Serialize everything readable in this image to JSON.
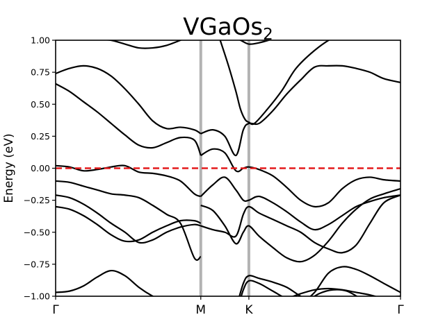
{
  "chart_data": {
    "type": "line",
    "title": "VGaOs",
    "title_subscript": "2",
    "xlabel": "",
    "ylabel": "Energy (eV)",
    "ylim": [
      -1.0,
      1.0
    ],
    "xlim": [
      0,
      3.73
    ],
    "yticks": [
      {
        "value": 1.0,
        "label": "1.00"
      },
      {
        "value": 0.75,
        "label": "0.75"
      },
      {
        "value": 0.5,
        "label": "0.50"
      },
      {
        "value": 0.25,
        "label": "0.25"
      },
      {
        "value": 0.0,
        "label": "0.00"
      },
      {
        "value": -0.25,
        "label": "−0.25"
      },
      {
        "value": -0.5,
        "label": "−0.50"
      },
      {
        "value": -0.75,
        "label": "−0.75"
      },
      {
        "value": -1.0,
        "label": "−1.00"
      }
    ],
    "xticks": [
      {
        "value": 0,
        "label": "Γ"
      },
      {
        "value": 1.57,
        "label": "M"
      },
      {
        "value": 2.09,
        "label": "K"
      },
      {
        "value": 3.73,
        "label": "Γ"
      }
    ],
    "vlines": [
      1.57,
      2.09
    ],
    "vline_color": "#b3b3b3",
    "fermi_level": 0.0,
    "fermi_color": "#e41a1c",
    "band_color": "#000000",
    "grid": false,
    "series": [
      {
        "x": [
          0.0,
          0.15,
          0.3,
          0.45,
          0.6,
          0.75,
          0.9,
          1.05,
          1.2,
          1.35,
          1.5,
          1.57
        ],
        "values": [
          -0.97,
          -0.96,
          -0.92,
          -0.85,
          -0.8,
          -0.84,
          -0.93,
          -1.0,
          -1.05,
          -1.08,
          -1.1,
          -1.1
        ]
      },
      {
        "x": [
          2.09,
          2.2,
          2.35,
          2.5,
          2.65,
          2.8,
          2.95,
          3.1,
          3.25,
          3.4,
          3.55,
          3.73
        ],
        "values": [
          -1.1,
          -1.09,
          -1.06,
          -1.02,
          -0.98,
          -0.95,
          -0.94,
          -0.95,
          -0.97,
          -0.99,
          -1.02,
          -1.05
        ]
      },
      {
        "x": [
          0.0,
          0.15,
          0.3,
          0.45,
          0.6,
          0.75,
          0.9,
          1.05,
          1.2,
          1.35,
          1.5,
          1.57
        ],
        "values": [
          -0.3,
          -0.32,
          -0.37,
          -0.44,
          -0.52,
          -0.57,
          -0.56,
          -0.5,
          -0.45,
          -0.41,
          -0.41,
          -0.43
        ]
      },
      {
        "x": [
          0.0,
          0.15,
          0.3,
          0.45,
          0.6,
          0.75,
          0.9,
          1.05,
          1.2,
          1.35,
          1.5,
          1.57
        ],
        "values": [
          -0.21,
          -0.23,
          -0.28,
          -0.35,
          -0.43,
          -0.5,
          -0.58,
          -0.56,
          -0.5,
          -0.46,
          -0.44,
          -0.45
        ]
      },
      {
        "x": [
          0.0,
          0.15,
          0.3,
          0.45,
          0.6,
          0.75,
          0.9,
          1.05,
          1.2,
          1.35,
          1.5,
          1.57
        ],
        "values": [
          -0.1,
          -0.11,
          -0.14,
          -0.17,
          -0.2,
          -0.21,
          -0.23,
          -0.29,
          -0.36,
          -0.43,
          -0.7,
          -0.69
        ]
      },
      {
        "x": [
          0.0,
          0.15,
          0.3,
          0.45,
          0.6,
          0.75,
          0.9,
          1.05,
          1.2,
          1.35,
          1.5,
          1.57
        ],
        "values": [
          0.02,
          0.01,
          -0.02,
          -0.01,
          0.01,
          0.02,
          -0.03,
          -0.04,
          -0.06,
          -0.1,
          -0.2,
          -0.22
        ]
      },
      {
        "x": [
          0.0,
          0.15,
          0.3,
          0.45,
          0.6,
          0.75,
          0.9,
          1.05,
          1.2,
          1.35,
          1.5,
          1.57
        ],
        "values": [
          0.66,
          0.6,
          0.52,
          0.44,
          0.35,
          0.26,
          0.18,
          0.16,
          0.2,
          0.24,
          0.22,
          0.1
        ]
      },
      {
        "x": [
          0.0,
          0.15,
          0.3,
          0.45,
          0.6,
          0.75,
          0.9,
          1.05,
          1.2,
          1.35,
          1.5,
          1.57
        ],
        "values": [
          0.74,
          0.78,
          0.8,
          0.78,
          0.72,
          0.62,
          0.5,
          0.37,
          0.31,
          0.32,
          0.3,
          0.27
        ]
      },
      {
        "x": [
          0.0,
          0.15,
          0.3,
          0.45,
          0.6,
          0.75,
          0.9,
          1.05,
          1.2,
          1.35,
          1.57
        ],
        "values": [
          1.1,
          1.08,
          1.05,
          1.01,
          1.0,
          0.97,
          0.94,
          0.94,
          0.96,
          1.0,
          1.06
        ]
      },
      {
        "x": [
          1.57,
          1.7,
          1.83,
          1.95,
          2.03,
          2.09,
          2.2,
          2.35,
          2.5,
          2.65,
          2.8,
          2.95,
          3.1,
          3.25,
          3.4,
          3.55,
          3.73
        ],
        "values": [
          -0.22,
          -0.13,
          -0.07,
          -0.17,
          -0.25,
          -0.25,
          -0.22,
          -0.27,
          -0.34,
          -0.42,
          -0.48,
          -0.44,
          -0.37,
          -0.3,
          -0.26,
          -0.23,
          -0.21
        ]
      },
      {
        "x": [
          1.57,
          1.7,
          1.83,
          1.95,
          2.03,
          2.09,
          2.2,
          2.35,
          2.5,
          2.65,
          2.8,
          2.95,
          3.1,
          3.25,
          3.4,
          3.55,
          3.73
        ],
        "values": [
          -0.45,
          -0.48,
          -0.5,
          -0.53,
          -0.36,
          -0.3,
          -0.35,
          -0.4,
          -0.45,
          -0.5,
          -0.58,
          -0.63,
          -0.66,
          -0.6,
          -0.43,
          -0.27,
          -0.21
        ]
      },
      {
        "x": [
          1.57,
          1.7,
          1.83,
          1.95,
          2.03,
          2.09,
          2.2,
          2.35,
          2.5,
          2.65,
          2.8,
          2.95,
          3.1,
          3.25,
          3.4,
          3.55,
          3.73
        ],
        "values": [
          -0.29,
          -0.33,
          -0.45,
          -0.59,
          -0.5,
          -0.45,
          -0.53,
          -0.62,
          -0.7,
          -0.73,
          -0.68,
          -0.57,
          -0.43,
          -0.32,
          -0.24,
          -0.2,
          -0.16
        ]
      },
      {
        "x": [
          1.57,
          1.7,
          1.83,
          1.95,
          2.03,
          2.09,
          2.2,
          2.35,
          2.5,
          2.65,
          2.8,
          2.95,
          3.1,
          3.25,
          3.4,
          3.55,
          3.73
        ],
        "values": [
          0.1,
          0.15,
          0.12,
          -0.02,
          0.0,
          0.01,
          -0.01,
          -0.06,
          -0.15,
          -0.25,
          -0.3,
          -0.27,
          -0.16,
          -0.09,
          -0.07,
          -0.09,
          -0.1
        ]
      },
      {
        "x": [
          1.57,
          1.7,
          1.83,
          1.95,
          2.03,
          2.09,
          2.2,
          2.35,
          2.5,
          2.65,
          2.8,
          2.95,
          3.1,
          3.25,
          3.4,
          3.55,
          3.73
        ],
        "values": [
          0.27,
          0.3,
          0.25,
          0.1,
          0.3,
          0.35,
          0.35,
          0.45,
          0.58,
          0.69,
          0.79,
          0.8,
          0.8,
          0.78,
          0.75,
          0.7,
          0.67
        ]
      },
      {
        "x": [
          1.78,
          1.87,
          1.95,
          2.0,
          2.05,
          2.09,
          2.15,
          2.3,
          2.45,
          2.6,
          2.8,
          3.0,
          3.2,
          3.4,
          3.6,
          3.73
        ],
        "values": [
          1.0,
          0.8,
          0.6,
          0.46,
          0.38,
          0.36,
          0.35,
          0.47,
          0.61,
          0.78,
          0.92,
          1.02,
          1.08,
          1.1,
          1.1,
          1.1
        ]
      },
      {
        "x": [
          1.78,
          1.9,
          2.0,
          2.09,
          2.2,
          2.35,
          2.5,
          2.65,
          2.8,
          3.0,
          3.2,
          3.4,
          3.6,
          3.73
        ],
        "values": [
          1.06,
          1.03,
          1.0,
          0.97,
          0.98,
          1.01,
          1.04,
          1.08,
          1.1,
          1.1,
          1.1,
          1.1,
          1.1,
          1.1
        ]
      },
      {
        "x": [
          1.95,
          2.03,
          2.09,
          2.2,
          2.35,
          2.5,
          2.65,
          2.8,
          2.95,
          3.1,
          3.25,
          3.4,
          3.55,
          3.73
        ],
        "values": [
          -1.1,
          -0.9,
          -0.84,
          -0.86,
          -0.89,
          -0.93,
          -1.0,
          -1.05,
          -1.07,
          -1.06,
          -1.04,
          -1.02,
          -1.01,
          -1.0
        ]
      },
      {
        "x": [
          1.97,
          2.03,
          2.09,
          2.2,
          2.35,
          2.5,
          2.65,
          2.8,
          2.95,
          3.1,
          3.25,
          3.4,
          3.55,
          3.73
        ],
        "values": [
          -1.1,
          -0.95,
          -0.88,
          -0.9,
          -0.96,
          -1.02,
          -1.05,
          -0.97,
          -0.82,
          -0.77,
          -0.79,
          -0.84,
          -0.9,
          -0.97
        ]
      },
      {
        "x": [
          2.6,
          2.7,
          2.85,
          3.0,
          3.15,
          3.3
        ],
        "values": [
          -1.1,
          -1.05,
          -0.98,
          -0.95,
          -0.96,
          -1.02
        ]
      }
    ]
  }
}
